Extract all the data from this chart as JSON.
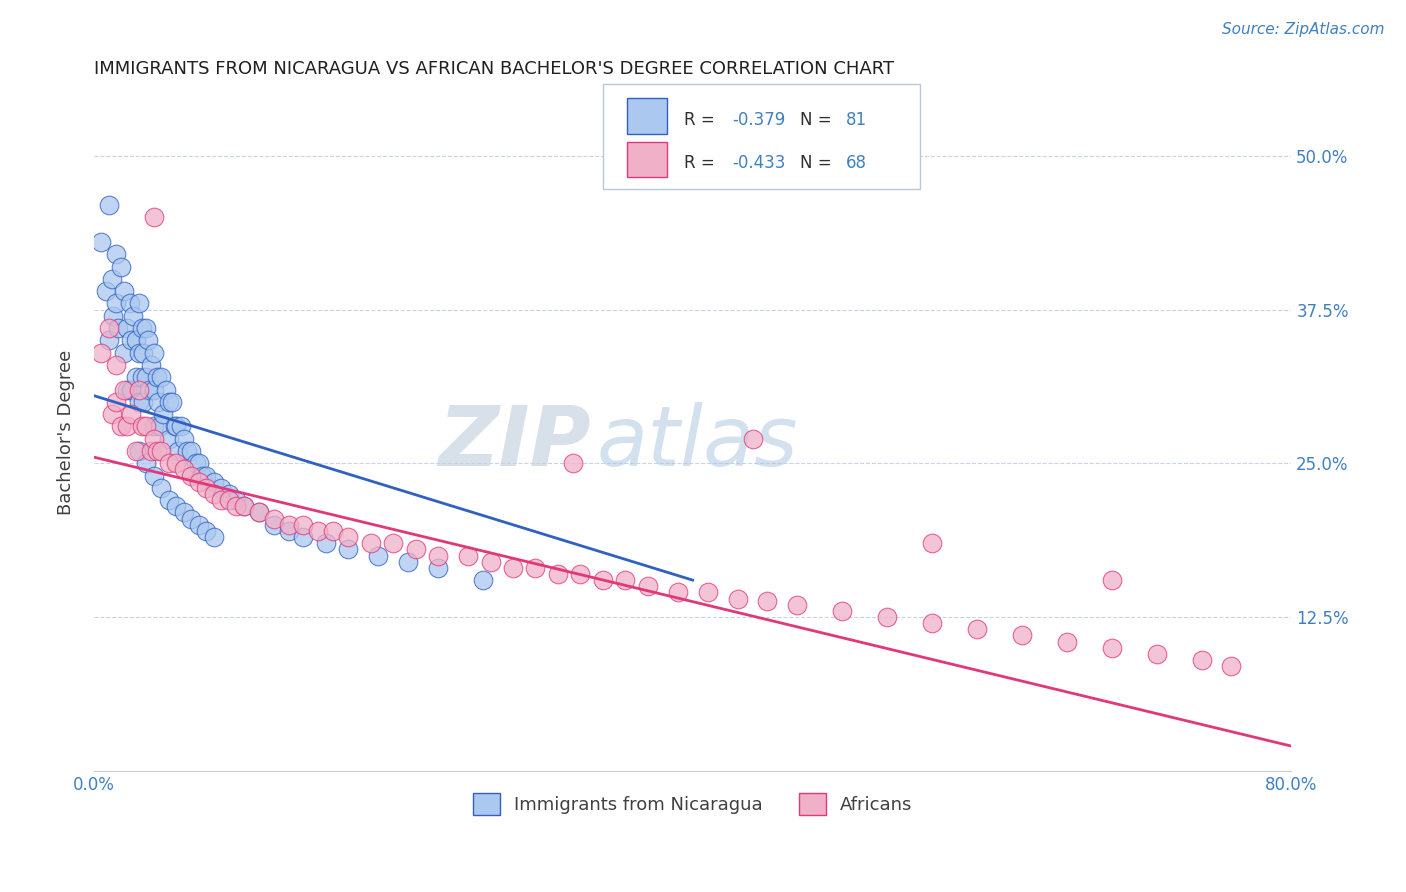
{
  "title": "IMMIGRANTS FROM NICARAGUA VS AFRICAN BACHELOR'S DEGREE CORRELATION CHART",
  "source": "Source: ZipAtlas.com",
  "ylabel": "Bachelor's Degree",
  "xlim": [
    0.0,
    0.8
  ],
  "ylim": [
    0.0,
    0.55
  ],
  "color_blue": "#aac8f0",
  "color_pink": "#f0b0c8",
  "line_blue": "#3060c0",
  "line_pink": "#e03878",
  "grid_color": "#c8d4e8",
  "background_color": "#ffffff",
  "title_color": "#202020",
  "source_color": "#4080c0",
  "legend_label_blue": "Immigrants from Nicaragua",
  "legend_label_pink": "Africans",
  "blue_scatter_x": [
    0.005,
    0.008,
    0.01,
    0.01,
    0.012,
    0.013,
    0.015,
    0.015,
    0.016,
    0.018,
    0.02,
    0.02,
    0.022,
    0.022,
    0.024,
    0.025,
    0.025,
    0.026,
    0.028,
    0.028,
    0.03,
    0.03,
    0.03,
    0.032,
    0.032,
    0.033,
    0.033,
    0.035,
    0.035,
    0.036,
    0.037,
    0.038,
    0.04,
    0.04,
    0.04,
    0.042,
    0.043,
    0.044,
    0.045,
    0.046,
    0.048,
    0.05,
    0.05,
    0.052,
    0.054,
    0.055,
    0.056,
    0.058,
    0.06,
    0.062,
    0.065,
    0.068,
    0.07,
    0.072,
    0.075,
    0.08,
    0.085,
    0.09,
    0.095,
    0.1,
    0.11,
    0.12,
    0.13,
    0.14,
    0.155,
    0.17,
    0.19,
    0.21,
    0.23,
    0.26,
    0.03,
    0.035,
    0.04,
    0.045,
    0.05,
    0.055,
    0.06,
    0.065,
    0.07,
    0.075,
    0.08
  ],
  "blue_scatter_y": [
    0.43,
    0.39,
    0.46,
    0.35,
    0.4,
    0.37,
    0.42,
    0.38,
    0.36,
    0.41,
    0.39,
    0.34,
    0.36,
    0.31,
    0.38,
    0.35,
    0.31,
    0.37,
    0.35,
    0.32,
    0.38,
    0.34,
    0.3,
    0.36,
    0.32,
    0.34,
    0.3,
    0.36,
    0.32,
    0.35,
    0.31,
    0.33,
    0.34,
    0.31,
    0.28,
    0.32,
    0.3,
    0.28,
    0.32,
    0.29,
    0.31,
    0.3,
    0.27,
    0.3,
    0.28,
    0.28,
    0.26,
    0.28,
    0.27,
    0.26,
    0.26,
    0.25,
    0.25,
    0.24,
    0.24,
    0.235,
    0.23,
    0.225,
    0.22,
    0.215,
    0.21,
    0.2,
    0.195,
    0.19,
    0.185,
    0.18,
    0.175,
    0.17,
    0.165,
    0.155,
    0.26,
    0.25,
    0.24,
    0.23,
    0.22,
    0.215,
    0.21,
    0.205,
    0.2,
    0.195,
    0.19
  ],
  "pink_scatter_x": [
    0.005,
    0.01,
    0.012,
    0.015,
    0.015,
    0.018,
    0.02,
    0.022,
    0.025,
    0.028,
    0.03,
    0.032,
    0.035,
    0.038,
    0.04,
    0.042,
    0.045,
    0.05,
    0.055,
    0.06,
    0.065,
    0.07,
    0.075,
    0.08,
    0.085,
    0.09,
    0.095,
    0.1,
    0.11,
    0.12,
    0.13,
    0.14,
    0.15,
    0.16,
    0.17,
    0.185,
    0.2,
    0.215,
    0.23,
    0.25,
    0.265,
    0.28,
    0.295,
    0.31,
    0.325,
    0.34,
    0.355,
    0.37,
    0.39,
    0.41,
    0.43,
    0.45,
    0.47,
    0.5,
    0.53,
    0.56,
    0.59,
    0.62,
    0.65,
    0.68,
    0.71,
    0.74,
    0.76,
    0.04,
    0.32,
    0.44,
    0.56,
    0.68
  ],
  "pink_scatter_y": [
    0.34,
    0.36,
    0.29,
    0.33,
    0.3,
    0.28,
    0.31,
    0.28,
    0.29,
    0.26,
    0.31,
    0.28,
    0.28,
    0.26,
    0.27,
    0.26,
    0.26,
    0.25,
    0.25,
    0.245,
    0.24,
    0.235,
    0.23,
    0.225,
    0.22,
    0.22,
    0.215,
    0.215,
    0.21,
    0.205,
    0.2,
    0.2,
    0.195,
    0.195,
    0.19,
    0.185,
    0.185,
    0.18,
    0.175,
    0.175,
    0.17,
    0.165,
    0.165,
    0.16,
    0.16,
    0.155,
    0.155,
    0.15,
    0.145,
    0.145,
    0.14,
    0.138,
    0.135,
    0.13,
    0.125,
    0.12,
    0.115,
    0.11,
    0.105,
    0.1,
    0.095,
    0.09,
    0.085,
    0.45,
    0.25,
    0.27,
    0.185,
    0.155
  ],
  "blue_line_x": [
    0.0,
    0.4
  ],
  "blue_line_y_start": 0.305,
  "blue_line_y_end": 0.155,
  "pink_line_x": [
    0.0,
    0.8
  ],
  "pink_line_y_start": 0.255,
  "pink_line_y_end": 0.02
}
